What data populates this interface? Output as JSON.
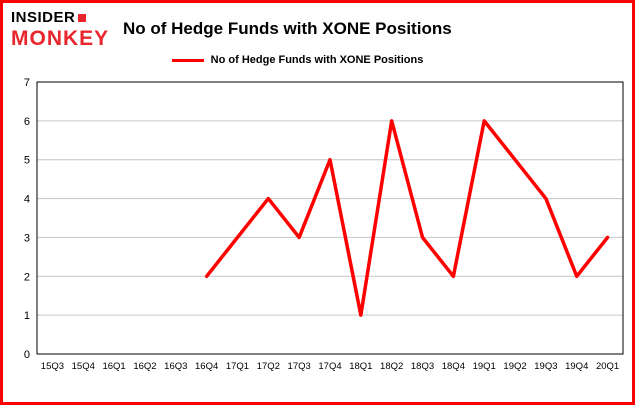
{
  "header": {
    "logo_line1": "INSIDER",
    "logo_line2": "MONKEY",
    "title": "No of Hedge Funds with XONE Positions"
  },
  "legend": {
    "label": "No of Hedge Funds with XONE Positions",
    "color": "#ff0000"
  },
  "chart_data": {
    "type": "line",
    "title": "No of Hedge Funds with XONE Positions",
    "categories": [
      "15Q3",
      "15Q4",
      "16Q1",
      "16Q2",
      "16Q3",
      "16Q4",
      "17Q1",
      "17Q2",
      "17Q3",
      "17Q4",
      "18Q1",
      "18Q2",
      "18Q3",
      "18Q4",
      "19Q1",
      "19Q2",
      "19Q3",
      "19Q4",
      "20Q1"
    ],
    "series": [
      {
        "name": "No of Hedge Funds with XONE Positions",
        "values": [
          null,
          null,
          null,
          null,
          null,
          2,
          3,
          4,
          3,
          5,
          1,
          6,
          3,
          2,
          6,
          5,
          4,
          2,
          3
        ]
      }
    ],
    "xlabel": "",
    "ylabel": "",
    "ylim": [
      0,
      7
    ],
    "yticks": [
      0,
      1,
      2,
      3,
      4,
      5,
      6,
      7
    ],
    "grid": true,
    "legend_position": "top",
    "line_color": "#ff0000"
  },
  "colors": {
    "frame_border": "#ff0000",
    "grid": "#c6c6c6",
    "axis": "#000000",
    "logo_red": "#e8262d"
  }
}
